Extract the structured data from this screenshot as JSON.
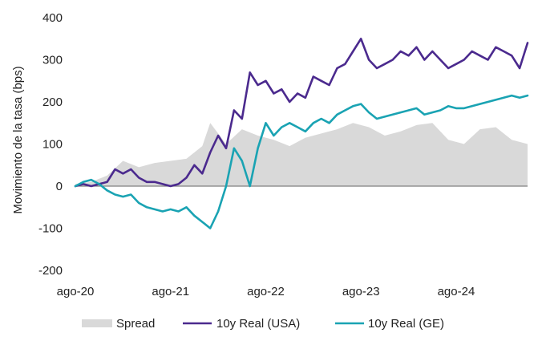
{
  "chart_data": {
    "type": "line",
    "title": "",
    "xlabel": "",
    "ylabel": "Movimiento de la tasa (bps)",
    "ylim": [
      -200,
      400
    ],
    "yticks": [
      -200,
      -100,
      0,
      100,
      200,
      300,
      400
    ],
    "xticks": [
      {
        "label": "ago-20",
        "x": "2020-08"
      },
      {
        "label": "ago-21",
        "x": "2021-08"
      },
      {
        "label": "ago-22",
        "x": "2022-08"
      },
      {
        "label": "ago-23",
        "x": "2023-08"
      },
      {
        "label": "ago-24",
        "x": "2024-08"
      }
    ],
    "xlim": [
      "2020-08",
      "2025-05"
    ],
    "grid": false,
    "legend_position": "bottom",
    "colors": {
      "spread": "#d9d9d9",
      "usa": "#4b2a8e",
      "ge": "#1aa3b3",
      "axis": "#808080"
    },
    "series": [
      {
        "name": "Spread",
        "type": "area",
        "color": "#d9d9d9",
        "x": [
          "2020-08",
          "2020-10",
          "2020-12",
          "2021-02",
          "2021-04",
          "2021-06",
          "2021-08",
          "2021-10",
          "2021-12",
          "2022-01",
          "2022-03",
          "2022-05",
          "2022-07",
          "2022-09",
          "2022-11",
          "2023-01",
          "2023-03",
          "2023-05",
          "2023-07",
          "2023-09",
          "2023-11",
          "2024-01",
          "2024-03",
          "2024-05",
          "2024-07",
          "2024-09",
          "2024-11",
          "2025-01",
          "2025-03",
          "2025-05"
        ],
        "values": [
          5,
          10,
          25,
          60,
          45,
          55,
          60,
          65,
          95,
          150,
          100,
          135,
          120,
          110,
          95,
          115,
          125,
          135,
          150,
          140,
          120,
          130,
          145,
          150,
          110,
          100,
          135,
          140,
          110,
          100
        ]
      },
      {
        "name": "10y Real (USA)",
        "type": "line",
        "color": "#4b2a8e",
        "x": [
          "2020-08",
          "2020-09",
          "2020-10",
          "2020-11",
          "2020-12",
          "2021-01",
          "2021-02",
          "2021-03",
          "2021-04",
          "2021-05",
          "2021-06",
          "2021-07",
          "2021-08",
          "2021-09",
          "2021-10",
          "2021-11",
          "2021-12",
          "2022-01",
          "2022-02",
          "2022-03",
          "2022-04",
          "2022-05",
          "2022-06",
          "2022-07",
          "2022-08",
          "2022-09",
          "2022-10",
          "2022-11",
          "2022-12",
          "2023-01",
          "2023-02",
          "2023-03",
          "2023-04",
          "2023-05",
          "2023-06",
          "2023-07",
          "2023-08",
          "2023-09",
          "2023-10",
          "2023-11",
          "2023-12",
          "2024-01",
          "2024-02",
          "2024-03",
          "2024-04",
          "2024-05",
          "2024-06",
          "2024-07",
          "2024-08",
          "2024-09",
          "2024-10",
          "2024-11",
          "2024-12",
          "2025-01",
          "2025-02",
          "2025-03",
          "2025-04",
          "2025-05"
        ],
        "values": [
          0,
          5,
          0,
          5,
          10,
          40,
          30,
          40,
          20,
          10,
          10,
          5,
          0,
          5,
          20,
          50,
          30,
          80,
          120,
          90,
          180,
          160,
          270,
          240,
          250,
          220,
          230,
          200,
          220,
          210,
          260,
          250,
          240,
          280,
          290,
          320,
          350,
          300,
          280,
          290,
          300,
          320,
          310,
          330,
          300,
          320,
          300,
          280,
          290,
          300,
          320,
          310,
          300,
          330,
          320,
          310,
          280,
          340
        ]
      },
      {
        "name": "10y Real (GE)",
        "type": "line",
        "color": "#1aa3b3",
        "x": [
          "2020-08",
          "2020-09",
          "2020-10",
          "2020-11",
          "2020-12",
          "2021-01",
          "2021-02",
          "2021-03",
          "2021-04",
          "2021-05",
          "2021-06",
          "2021-07",
          "2021-08",
          "2021-09",
          "2021-10",
          "2021-11",
          "2021-12",
          "2022-01",
          "2022-02",
          "2022-03",
          "2022-04",
          "2022-05",
          "2022-06",
          "2022-07",
          "2022-08",
          "2022-09",
          "2022-10",
          "2022-11",
          "2022-12",
          "2023-01",
          "2023-02",
          "2023-03",
          "2023-04",
          "2023-05",
          "2023-06",
          "2023-07",
          "2023-08",
          "2023-09",
          "2023-10",
          "2023-11",
          "2023-12",
          "2024-01",
          "2024-02",
          "2024-03",
          "2024-04",
          "2024-05",
          "2024-06",
          "2024-07",
          "2024-08",
          "2024-09",
          "2024-10",
          "2024-11",
          "2024-12",
          "2025-01",
          "2025-02",
          "2025-03",
          "2025-04",
          "2025-05"
        ],
        "values": [
          0,
          10,
          15,
          5,
          -10,
          -20,
          -25,
          -20,
          -40,
          -50,
          -55,
          -60,
          -55,
          -60,
          -50,
          -70,
          -85,
          -100,
          -60,
          0,
          90,
          60,
          0,
          90,
          150,
          120,
          140,
          150,
          140,
          130,
          150,
          160,
          150,
          170,
          180,
          190,
          195,
          175,
          160,
          165,
          170,
          175,
          180,
          185,
          170,
          175,
          180,
          190,
          185,
          185,
          190,
          195,
          200,
          205,
          210,
          215,
          210,
          215
        ]
      }
    ]
  }
}
